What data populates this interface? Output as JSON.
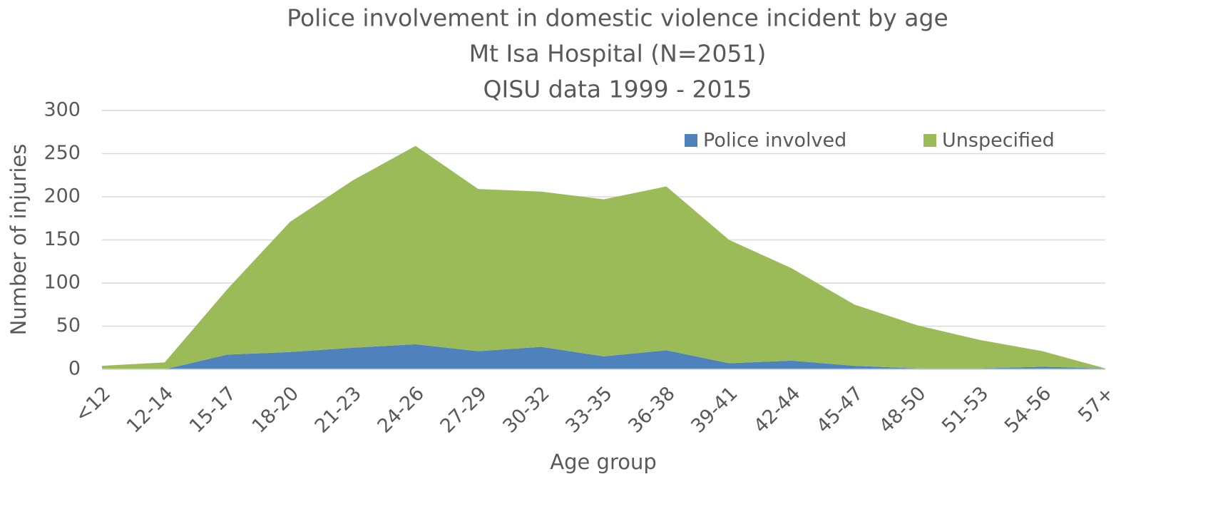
{
  "chart_data": {
    "type": "stacked-area",
    "title": "Police involvement in domestic violence incident by age",
    "subtitle": [
      "Mt Isa Hospital (N=2051)",
      "QISU data 1999 - 2015"
    ],
    "x_label": "Age group",
    "y_label": "Number of injuries",
    "categories": [
      "<12",
      "12-14",
      "15-17",
      "18-20",
      "21-23",
      "24-26",
      "27-29",
      "30-32",
      "33-35",
      "36-38",
      "39-41",
      "42-44",
      "45-47",
      "48-50",
      "51-53",
      "54-56",
      "57+"
    ],
    "series": [
      {
        "name": "Police involved",
        "color": "#4f81bd",
        "values": [
          0,
          0,
          17,
          20,
          25,
          29,
          21,
          26,
          15,
          22,
          7,
          10,
          4,
          1,
          1,
          3,
          1
        ]
      },
      {
        "name": "Unspecified",
        "color": "#9bbb59",
        "values": [
          4,
          8,
          76,
          151,
          194,
          230,
          188,
          180,
          182,
          190,
          143,
          107,
          71,
          50,
          33,
          18,
          0
        ]
      }
    ],
    "ylim": [
      0,
      300
    ],
    "yticks": [
      0,
      50,
      100,
      150,
      200,
      250,
      300
    ],
    "grid": true
  }
}
